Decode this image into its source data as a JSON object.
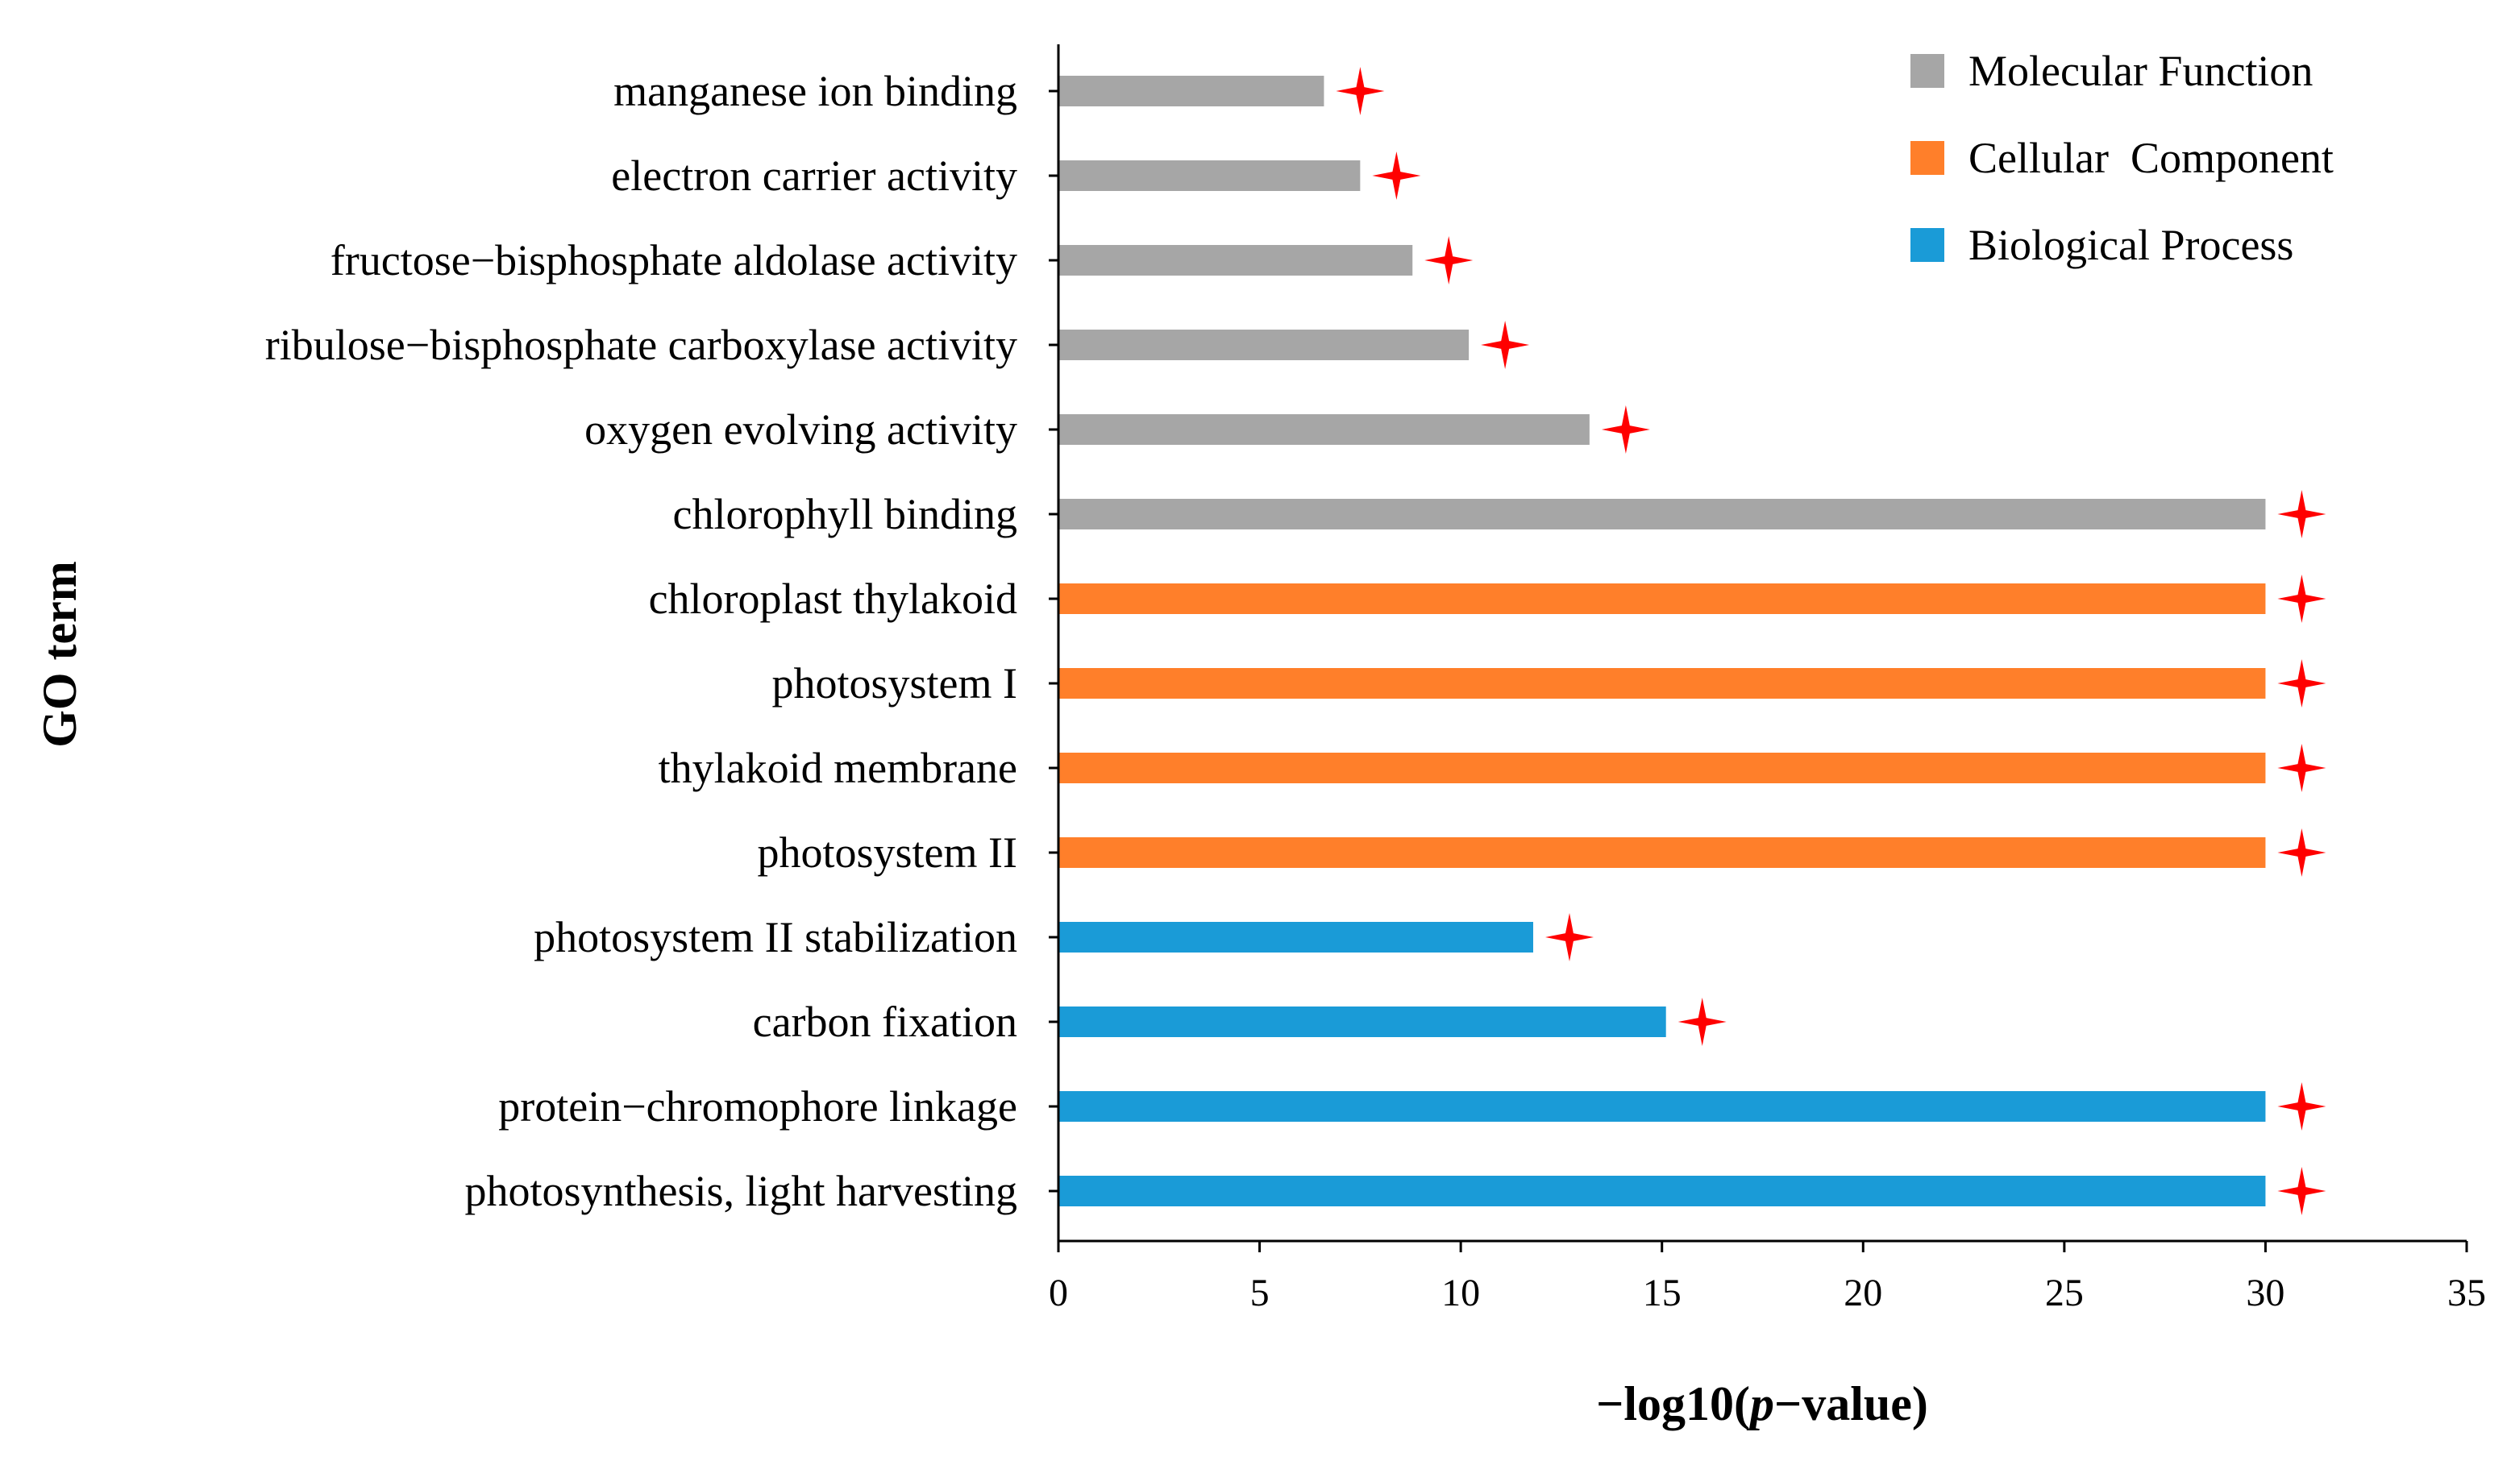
{
  "chart_data": {
    "type": "bar",
    "orientation": "horizontal",
    "title": "",
    "xlabel": "-log10(p-value)",
    "xlabel_parts": [
      "−log10(",
      "p",
      "−value)"
    ],
    "ylabel": "GO term",
    "xlim": [
      0,
      35
    ],
    "xticks": [
      0,
      5,
      10,
      15,
      20,
      25,
      30,
      35
    ],
    "grid": false,
    "legend_position": "top-right",
    "significance_marker": "red four-pointed star beside every bar",
    "series": [
      {
        "name": "Molecular Function",
        "color": "#A6A6A6"
      },
      {
        "name": "Cellular  Component",
        "color": "#FF7F2A"
      },
      {
        "name": "Biological Process",
        "color": "#1A9BD7"
      }
    ],
    "bars": [
      {
        "label": "manganese ion binding",
        "value": 6.6,
        "series": 0
      },
      {
        "label": "electron carrier activity",
        "value": 7.5,
        "series": 0
      },
      {
        "label": "fructose−bisphosphate aldolase activity",
        "value": 8.8,
        "series": 0
      },
      {
        "label": "ribulose−bisphosphate carboxylase activity",
        "value": 10.2,
        "series": 0
      },
      {
        "label": "oxygen evolving activity",
        "value": 13.2,
        "series": 0
      },
      {
        "label": "chlorophyll binding",
        "value": 30,
        "series": 0
      },
      {
        "label": "chloroplast thylakoid",
        "value": 30,
        "series": 1
      },
      {
        "label": "photosystem I",
        "value": 30,
        "series": 1
      },
      {
        "label": "thylakoid membrane",
        "value": 30,
        "series": 1
      },
      {
        "label": "photosystem II",
        "value": 30,
        "series": 1
      },
      {
        "label": "photosystem II stabilization",
        "value": 11.8,
        "series": 2
      },
      {
        "label": "carbon fixation",
        "value": 15.1,
        "series": 2
      },
      {
        "label": "protein−chromophore linkage",
        "value": 30,
        "series": 2
      },
      {
        "label": "photosynthesis, light harvesting",
        "value": 30,
        "series": 2
      }
    ],
    "star_color": "#FF0000"
  }
}
